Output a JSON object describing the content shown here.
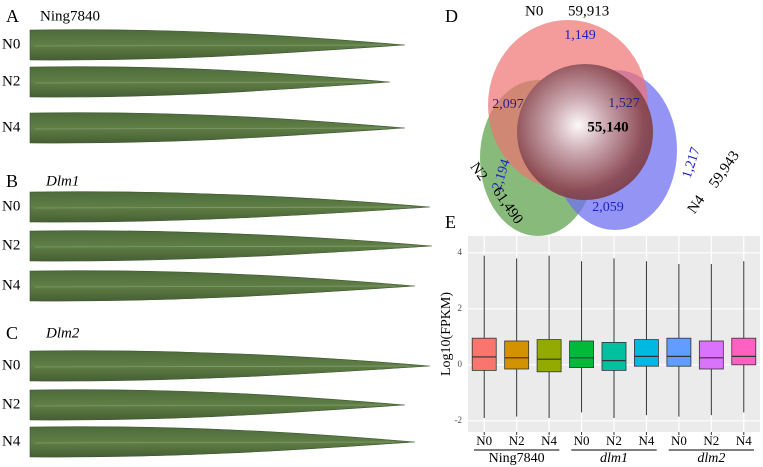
{
  "leaf_panels": [
    {
      "letter": "A",
      "genotype": "Ning7840",
      "rows": [
        "N0",
        "N2",
        "N4"
      ]
    },
    {
      "letter": "B",
      "genotype": "Dlm1",
      "rows": [
        "N0",
        "N2",
        "N4"
      ]
    },
    {
      "letter": "C",
      "genotype": "Dlm2",
      "rows": [
        "N0",
        "N2",
        "N4"
      ]
    }
  ],
  "venn": {
    "letter": "D",
    "sets": [
      {
        "name": "N0",
        "total": "59,913"
      },
      {
        "name": "N2",
        "total": "61,490"
      },
      {
        "name": "N4",
        "total": "59,943"
      }
    ],
    "regions": {
      "n0_only": "1,149",
      "n0_n2": "2,097",
      "n0_n4": "1,527",
      "all": "55,140",
      "n2_only": "2,194",
      "n4_only": "1,217",
      "n2_n4": "2,059"
    }
  },
  "chart_data": {
    "type": "boxplot",
    "letter": "E",
    "y_label": "Log10(FPKM)",
    "categories": [
      "N0",
      "N2",
      "N4",
      "N0",
      "N2",
      "N4",
      "N0",
      "N2",
      "N4"
    ],
    "groups": [
      "Ning7840",
      "dlm1",
      "dlm2"
    ],
    "boxes": [
      {
        "q1": -0.2,
        "median": 0.28,
        "q3": 0.95,
        "whisker_low": -1.9,
        "whisker_high": 3.9,
        "color": "#f8766d"
      },
      {
        "q1": -0.15,
        "median": 0.25,
        "q3": 0.85,
        "whisker_low": -1.85,
        "whisker_high": 3.8,
        "color": "#d39200"
      },
      {
        "q1": -0.25,
        "median": 0.2,
        "q3": 0.9,
        "whisker_low": -1.9,
        "whisker_high": 3.9,
        "color": "#93aa00"
      },
      {
        "q1": -0.1,
        "median": 0.25,
        "q3": 0.85,
        "whisker_low": -1.7,
        "whisker_high": 3.7,
        "color": "#00ba38"
      },
      {
        "q1": -0.2,
        "median": 0.15,
        "q3": 0.8,
        "whisker_low": -1.9,
        "whisker_high": 3.8,
        "color": "#00c19f"
      },
      {
        "q1": -0.05,
        "median": 0.3,
        "q3": 0.9,
        "whisker_low": -1.8,
        "whisker_high": 3.7,
        "color": "#00b9e3"
      },
      {
        "q1": -0.05,
        "median": 0.3,
        "q3": 0.95,
        "whisker_low": -1.85,
        "whisker_high": 3.6,
        "color": "#619cff"
      },
      {
        "q1": -0.15,
        "median": 0.25,
        "q3": 0.85,
        "whisker_low": -1.8,
        "whisker_high": 3.6,
        "color": "#db72fb"
      },
      {
        "q1": 0,
        "median": 0.3,
        "q3": 0.95,
        "whisker_low": -1.7,
        "whisker_high": 3.7,
        "color": "#ff61c3"
      }
    ],
    "ylim": [
      -2.4,
      4.6
    ],
    "yticks": [
      -2,
      0,
      2,
      4
    ],
    "grid": true
  }
}
